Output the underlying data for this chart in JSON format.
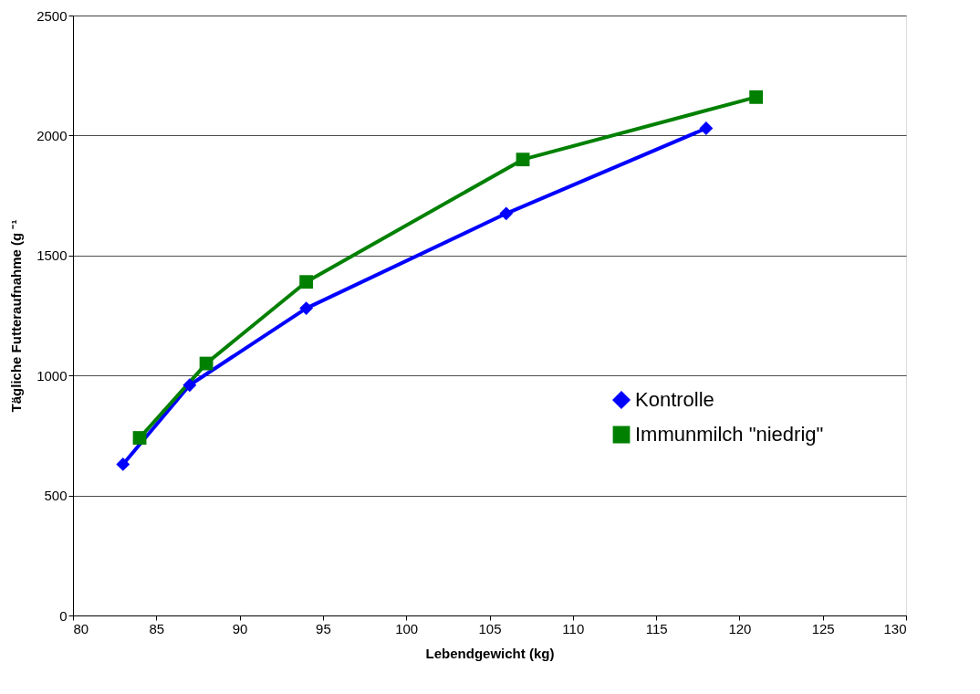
{
  "chart_data": {
    "type": "line",
    "xlabel": "Lebendgewicht (kg)",
    "ylabel": "Tägliche Futteraufnahme (g ⁻¹",
    "xlim": [
      80,
      130
    ],
    "xticks": [
      80,
      85,
      90,
      95,
      100,
      105,
      110,
      115,
      120,
      125,
      130
    ],
    "ylim": [
      0,
      2500
    ],
    "yticks": [
      0,
      500,
      1000,
      1500,
      2000,
      2500
    ],
    "grid": "y",
    "legend": "right",
    "line_style": "solid",
    "series": [
      {
        "name": "Kontrolle",
        "color": "#0000ff",
        "marker": "diamond",
        "x": [
          83,
          87,
          94,
          106,
          118
        ],
        "values": [
          630,
          960,
          1280,
          1675,
          2030
        ]
      },
      {
        "name": "Immunmilch \"niedrig\"",
        "color": "#008000",
        "marker": "square",
        "x": [
          84,
          88,
          94,
          107,
          121
        ],
        "values": [
          740,
          1050,
          1390,
          1900,
          2160
        ]
      }
    ]
  }
}
